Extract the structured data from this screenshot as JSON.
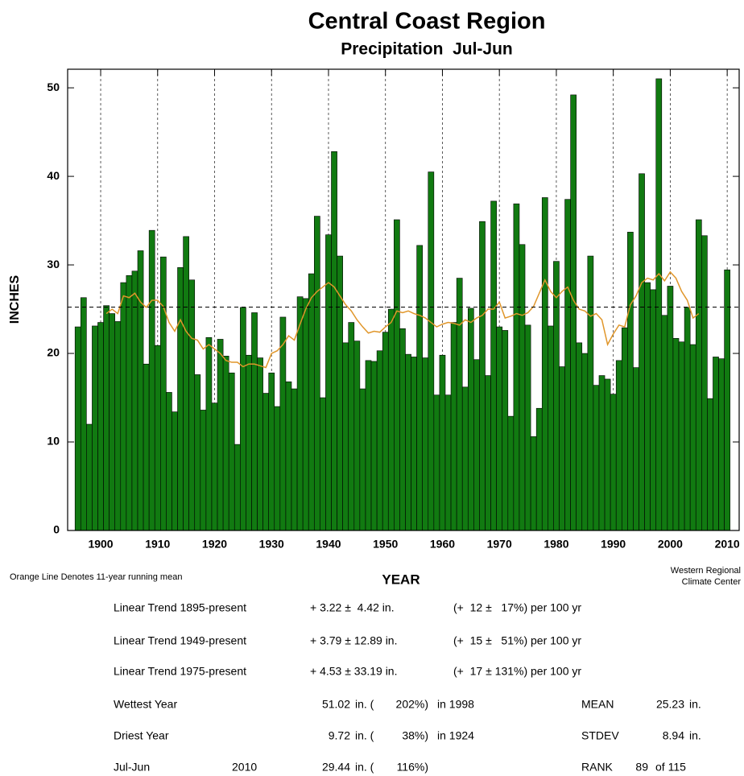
{
  "chart_data": {
    "type": "bar",
    "title": "Central Coast Region",
    "subtitle": "Precipitation  Jul-Jun",
    "xlabel": "YEAR",
    "ylabel": "INCHES",
    "x": [
      1896,
      1897,
      1898,
      1899,
      1900,
      1901,
      1902,
      1903,
      1904,
      1905,
      1906,
      1907,
      1908,
      1909,
      1910,
      1911,
      1912,
      1913,
      1914,
      1915,
      1916,
      1917,
      1918,
      1919,
      1920,
      1921,
      1922,
      1923,
      1924,
      1925,
      1926,
      1927,
      1928,
      1929,
      1930,
      1931,
      1932,
      1933,
      1934,
      1935,
      1936,
      1937,
      1938,
      1939,
      1940,
      1941,
      1942,
      1943,
      1944,
      1945,
      1946,
      1947,
      1948,
      1949,
      1950,
      1951,
      1952,
      1953,
      1954,
      1955,
      1956,
      1957,
      1958,
      1959,
      1960,
      1961,
      1962,
      1963,
      1964,
      1965,
      1966,
      1967,
      1968,
      1969,
      1970,
      1971,
      1972,
      1973,
      1974,
      1975,
      1976,
      1977,
      1978,
      1979,
      1980,
      1981,
      1982,
      1983,
      1984,
      1985,
      1986,
      1987,
      1988,
      1989,
      1990,
      1991,
      1992,
      1993,
      1994,
      1995,
      1996,
      1997,
      1998,
      1999,
      2000,
      2001,
      2002,
      2003,
      2004,
      2005,
      2006,
      2007,
      2008,
      2009,
      2010
    ],
    "series": [
      {
        "color": "#117a11",
        "values": [
          23.0,
          26.3,
          12.0,
          23.1,
          23.5,
          25.4,
          24.5,
          23.6,
          28.0,
          28.8,
          29.3,
          31.6,
          18.8,
          33.9,
          20.9,
          30.9,
          15.6,
          13.4,
          29.7,
          33.2,
          28.3,
          17.6,
          13.6,
          21.8,
          14.4,
          21.6,
          19.7,
          17.8,
          9.72,
          25.2,
          19.8,
          24.6,
          19.5,
          15.5,
          17.8,
          14.0,
          24.1,
          16.8,
          16.0,
          26.4,
          26.2,
          29.0,
          35.5,
          15.0,
          33.4,
          42.8,
          31.0,
          21.2,
          23.5,
          21.4,
          16.0,
          19.2,
          19.1,
          20.3,
          22.4,
          25.0,
          35.1,
          22.8,
          19.9,
          19.6,
          32.2,
          19.5,
          40.5,
          15.3,
          19.8,
          15.3,
          23.5,
          28.5,
          16.2,
          25.1,
          19.3,
          34.9,
          17.5,
          37.2,
          23.0,
          22.6,
          12.9,
          36.9,
          32.3,
          23.2,
          10.6,
          13.8,
          37.6,
          23.1,
          30.4,
          18.5,
          37.4,
          49.2,
          21.2,
          20.0,
          31.0,
          16.4,
          17.5,
          17.1,
          15.4,
          19.2,
          22.9,
          33.7,
          18.4,
          40.3,
          28.0,
          27.2,
          51.02,
          24.3,
          27.6,
          21.7,
          21.3,
          25.2,
          21.0,
          35.1,
          33.3,
          14.9,
          19.6,
          19.4,
          29.44
        ]
      },
      {
        "type": "line",
        "color": "#e0962a",
        "values": [
          null,
          null,
          null,
          null,
          null,
          24.5,
          25.0,
          24.5,
          26.5,
          26.3,
          26.8,
          25.8,
          25.2,
          26.0,
          26.0,
          25.3,
          23.5,
          22.5,
          23.8,
          22.5,
          21.7,
          21.5,
          20.5,
          21.0,
          20.5,
          20.0,
          19.2,
          19.0,
          19.0,
          18.5,
          18.8,
          18.8,
          18.6,
          18.4,
          20.0,
          20.3,
          21.0,
          22.0,
          21.5,
          23.3,
          25.0,
          26.3,
          27.0,
          27.5,
          28.0,
          27.5,
          26.5,
          25.5,
          24.8,
          23.8,
          23.0,
          22.3,
          22.5,
          22.4,
          23.0,
          23.5,
          24.8,
          24.6,
          24.8,
          24.5,
          24.3,
          24.0,
          23.5,
          23.0,
          23.3,
          23.5,
          23.4,
          23.2,
          23.8,
          23.5,
          24.0,
          24.3,
          25.0,
          25.0,
          25.8,
          24.0,
          24.2,
          24.5,
          24.3,
          24.6,
          25.3,
          26.8,
          28.3,
          27.0,
          26.3,
          27.0,
          27.5,
          26.0,
          25.0,
          24.8,
          24.2,
          24.5,
          23.8,
          21.0,
          22.2,
          23.2,
          23.0,
          25.5,
          26.5,
          28.0,
          28.5,
          28.3,
          29.0,
          28.2,
          29.2,
          28.5,
          27.0,
          26.0,
          24.0,
          24.5,
          null,
          null,
          null,
          null,
          null
        ]
      }
    ],
    "xlim": [
      1894.2,
      2012.1
    ],
    "ylim": [
      0,
      52.1
    ],
    "xticks": [
      1900,
      1910,
      1920,
      1930,
      1940,
      1950,
      1960,
      1970,
      1980,
      1990,
      2000,
      2010
    ],
    "yticks": [
      0,
      10,
      20,
      30,
      40,
      50
    ],
    "grid": true
  },
  "notes": {
    "running_mean": "Orange Line Denotes 11-year running mean",
    "credit": [
      "Western Regional",
      "Climate Center"
    ]
  },
  "stats": {
    "trends": [
      {
        "label": "Linear Trend 1895-present",
        "change": "+ 3.22 ±  4.42 in.",
        "percent": "(+  12 ±   17%) per 100 yr"
      },
      {
        "label": "Linear Trend 1949-present",
        "change": "+ 3.79 ± 12.89 in.",
        "percent": "(+  15 ±   51%) per 100 yr"
      },
      {
        "label": "Linear Trend 1975-present",
        "change": "+ 4.53 ± 33.19 in.",
        "percent": "(+  17 ± 131%) per 100 yr"
      }
    ],
    "summary": [
      {
        "label": "Wettest Year",
        "value": "51.02",
        "unit": "in. (",
        "percent": "202%)",
        "year": "in 1998",
        "stat": "MEAN",
        "stat_value": 25.23,
        "stat_unit": "in."
      },
      {
        "label": "Driest Year",
        "value": "9.72",
        "unit": "in. (",
        "percent": "38%)",
        "year": "in 1924",
        "stat": "STDEV",
        "stat_value": 8.94,
        "stat_unit": "in."
      },
      {
        "label": "Jul-Jun",
        "season_year": "2010",
        "value": "29.44",
        "unit": "in. (",
        "percent": "116%)",
        "stat": "RANK",
        "stat_value": 89,
        "stat_unit": "of 115"
      }
    ]
  }
}
